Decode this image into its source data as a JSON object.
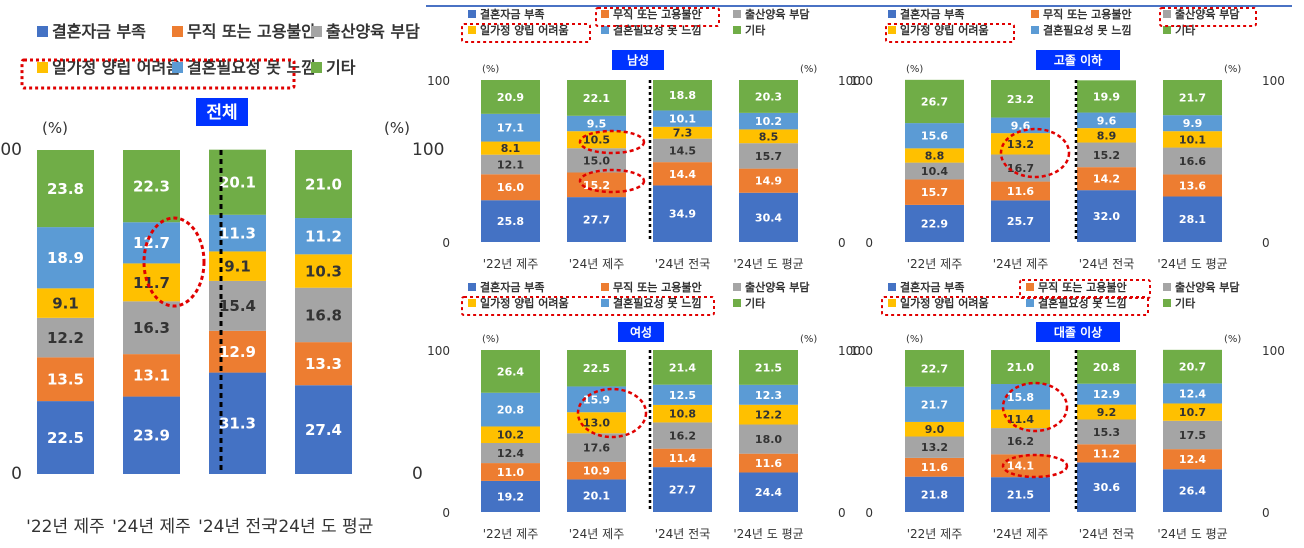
{
  "colors": {
    "funds": "#4472C4",
    "job": "#ED7D31",
    "child": "#A5A5A5",
    "balance": "#FFC000",
    "need": "#5B9BD5",
    "etc": "#70AD47",
    "title_bg": "#0033FF",
    "highlight": "#E00000"
  },
  "legend_labels": [
    "결혼자금 부족",
    "무직 또는 고용불안",
    "출산양육 부담",
    "일가정 양립 어려움",
    "결혼필요성 못 느낌",
    "기타"
  ],
  "axis": {
    "y_unit": "(%)",
    "ticks": [
      "100",
      "0"
    ]
  },
  "chart_data": [
    {
      "type": "bar",
      "title": "전체",
      "categories": [
        "'22년 제주",
        "'24년 제주",
        "'24년 전국",
        "'24년 도 평균"
      ],
      "ylim": [
        0,
        100
      ],
      "stacked": true,
      "series": [
        {
          "name": "결혼자금 부족",
          "values": [
            22.5,
            23.9,
            31.3,
            27.4
          ]
        },
        {
          "name": "무직 또는 고용불안",
          "values": [
            13.5,
            13.1,
            12.9,
            13.3
          ]
        },
        {
          "name": "출산양육 부담",
          "values": [
            12.2,
            16.3,
            15.4,
            16.8
          ]
        },
        {
          "name": "일가정 양립 어려움",
          "values": [
            9.1,
            11.7,
            9.1,
            10.3
          ]
        },
        {
          "name": "결혼필요성 못 느낌",
          "values": [
            18.9,
            12.7,
            11.3,
            11.2
          ]
        },
        {
          "name": "기타",
          "values": [
            23.8,
            22.3,
            20.1,
            21.0
          ]
        }
      ],
      "labels": [
        [
          "22.5",
          "23.9",
          "31.3",
          "27.4"
        ],
        [
          "13.5",
          "13.1",
          "12.9",
          "13.3"
        ],
        [
          "12.2",
          "16.3",
          "15.4",
          "16.8"
        ],
        [
          "9.1",
          "11.7",
          "9.1",
          "10.3"
        ],
        [
          "18.9",
          "12.7",
          "11.3",
          "11.2"
        ],
        [
          "23.8",
          "22.3",
          "20.1",
          "21.0"
        ]
      ]
    },
    {
      "type": "bar",
      "title": "남성",
      "categories": [
        "'22년 제주",
        "'24년 제주",
        "'24년 전국",
        "'24년 도 평균"
      ],
      "ylim": [
        0,
        100
      ],
      "stacked": true,
      "series": [
        {
          "name": "결혼자금 부족",
          "values": [
            25.8,
            27.7,
            34.9,
            30.4
          ]
        },
        {
          "name": "무직 또는 고용불안",
          "values": [
            16.0,
            15.2,
            14.4,
            14.9
          ]
        },
        {
          "name": "출산양육 부담",
          "values": [
            12.1,
            15.0,
            14.5,
            15.7
          ]
        },
        {
          "name": "일가정 양립 어려움",
          "values": [
            8.1,
            10.5,
            7.3,
            8.5
          ]
        },
        {
          "name": "결혼필요성 못 느낌",
          "values": [
            17.1,
            9.5,
            10.1,
            10.2
          ]
        },
        {
          "name": "기타",
          "values": [
            20.9,
            22.1,
            18.8,
            20.3
          ]
        }
      ],
      "labels": [
        [
          "25.8",
          "27.7",
          "34.9",
          "30.4"
        ],
        [
          "16.0",
          "15.2",
          "14.4",
          "14.9"
        ],
        [
          "12.1",
          "15.0",
          "14.5",
          "15.7"
        ],
        [
          "8.1",
          "10.5",
          "7.3",
          "8.5"
        ],
        [
          "17.1",
          "9.5",
          "10.1",
          "10.2"
        ],
        [
          "20.9",
          "22.1",
          "18.8",
          "20.3"
        ]
      ]
    },
    {
      "type": "bar",
      "title": "고졸 이하",
      "categories": [
        "'22년 제주",
        "'24년 제주",
        "'24년 전국",
        "'24년 도 평균"
      ],
      "ylim": [
        0,
        100
      ],
      "stacked": true,
      "series": [
        {
          "name": "결혼자금 부족",
          "values": [
            22.9,
            25.7,
            32.0,
            28.1
          ]
        },
        {
          "name": "무직 또는 고용불안",
          "values": [
            15.7,
            11.6,
            14.2,
            13.6
          ]
        },
        {
          "name": "출산양육 부담",
          "values": [
            10.4,
            16.7,
            15.2,
            16.6
          ]
        },
        {
          "name": "일가정 양립 어려움",
          "values": [
            8.8,
            13.2,
            8.9,
            10.1
          ]
        },
        {
          "name": "결혼필요성 못 느낌",
          "values": [
            15.6,
            9.6,
            9.6,
            9.9
          ]
        },
        {
          "name": "기타",
          "values": [
            26.7,
            23.2,
            19.9,
            21.7
          ]
        }
      ],
      "labels": [
        [
          "22.9",
          "25.7",
          "32.0",
          "28.1"
        ],
        [
          "15.7",
          "11.6",
          "14.2",
          "13.6"
        ],
        [
          "10.4",
          "16.7",
          "15.2",
          "16.6"
        ],
        [
          "8.8",
          "13.2",
          "8.9",
          "10.1"
        ],
        [
          "15.6",
          "9.6",
          "9.6",
          "9.9"
        ],
        [
          "26.7",
          "23.2",
          "19.9",
          "21.7"
        ]
      ]
    },
    {
      "type": "bar",
      "title": "여성",
      "categories": [
        "'22년 제주",
        "'24년 제주",
        "'24년 전국",
        "'24년 도 평균"
      ],
      "ylim": [
        0,
        100
      ],
      "stacked": true,
      "series": [
        {
          "name": "결혼자금 부족",
          "values": [
            19.2,
            20.1,
            27.7,
            24.4
          ]
        },
        {
          "name": "무직 또는 고용불안",
          "values": [
            11.0,
            10.9,
            11.4,
            11.6
          ]
        },
        {
          "name": "출산양육 부담",
          "values": [
            12.4,
            17.6,
            16.2,
            18.0
          ]
        },
        {
          "name": "일가정 양립 어려움",
          "values": [
            10.2,
            13.0,
            10.8,
            12.2
          ]
        },
        {
          "name": "결혼필요성 못 느낌",
          "values": [
            20.8,
            15.9,
            12.5,
            12.3
          ]
        },
        {
          "name": "기타",
          "values": [
            26.4,
            22.5,
            21.4,
            21.5
          ]
        }
      ],
      "labels": [
        [
          "19.2",
          "20.1",
          "27.7",
          "24.4"
        ],
        [
          "11.0",
          "10.9",
          "11.4",
          "11.6"
        ],
        [
          "12.4",
          "17.6",
          "16.2",
          "18.0"
        ],
        [
          "10.2",
          "13.0",
          "10.8",
          "12.2"
        ],
        [
          "20.8",
          "15.9",
          "12.5",
          "12.3"
        ],
        [
          "26.4",
          "22.5",
          "21.4",
          "21.5"
        ]
      ]
    },
    {
      "type": "bar",
      "title": "대졸 이상",
      "categories": [
        "'22년 제주",
        "'24년 제주",
        "'24년 전국",
        "'24년 도 평균"
      ],
      "ylim": [
        0,
        100
      ],
      "stacked": true,
      "series": [
        {
          "name": "결혼자금 부족",
          "values": [
            21.8,
            21.5,
            30.6,
            26.4
          ]
        },
        {
          "name": "무직 또는 고용불안",
          "values": [
            11.6,
            14.1,
            11.2,
            12.4
          ]
        },
        {
          "name": "출산양육 부담",
          "values": [
            13.2,
            16.2,
            15.3,
            17.5
          ]
        },
        {
          "name": "일가정 양립 어려움",
          "values": [
            9.0,
            11.4,
            9.2,
            10.7
          ]
        },
        {
          "name": "결혼필요성 못 느낌",
          "values": [
            21.7,
            15.8,
            12.9,
            12.4
          ]
        },
        {
          "name": "기타",
          "values": [
            22.7,
            21.0,
            20.8,
            20.7
          ]
        }
      ],
      "labels": [
        [
          "21.8",
          "21.5",
          "30.6",
          "26.4"
        ],
        [
          "11.6",
          "14.1",
          "11.2",
          "12.4"
        ],
        [
          "13.2",
          "16.2",
          "15.3",
          "17.5"
        ],
        [
          "9.0",
          "11.4",
          "9.2",
          "10.7"
        ],
        [
          "21.7",
          "15.8",
          "12.9",
          "12.4"
        ],
        [
          "22.7",
          "21.0",
          "20.8",
          "20.7"
        ]
      ]
    }
  ]
}
